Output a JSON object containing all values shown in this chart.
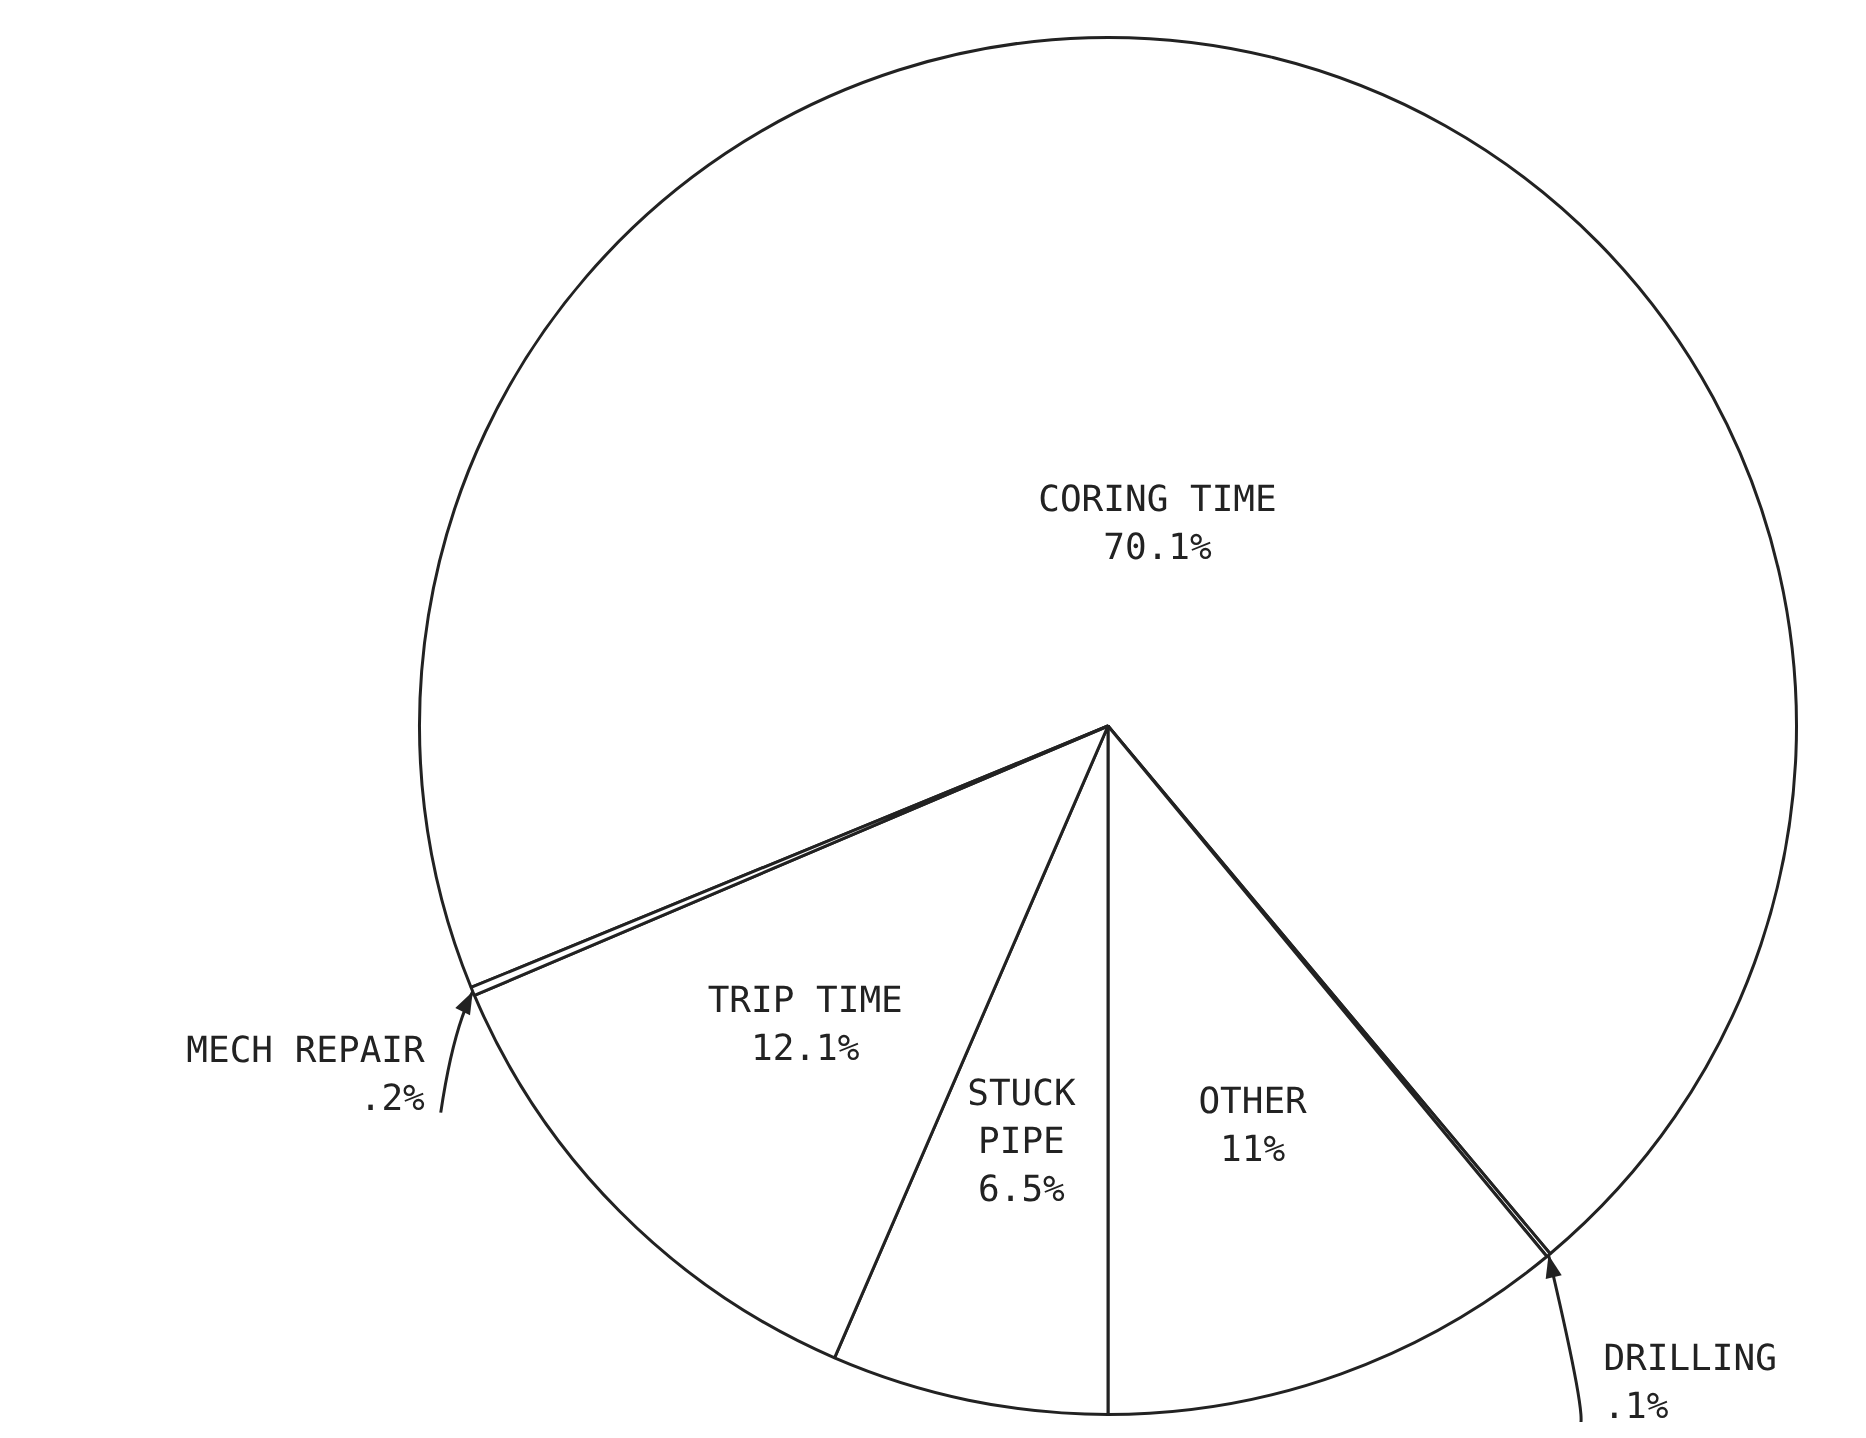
{
  "chart_data": {
    "type": "pie",
    "categories": [
      "CORING TIME",
      "DRILLING",
      "OTHER",
      "STUCK PIPE",
      "TRIP TIME",
      "MECH REPAIR"
    ],
    "values": [
      70.1,
      0.1,
      11,
      6.5,
      12.1,
      0.2
    ],
    "value_labels": [
      "70.1%",
      ".1%",
      "11%",
      "6.5%",
      "12.1%",
      ".2%"
    ],
    "colors": [
      "#ffffff",
      "#ffffff",
      "#ffffff",
      "#ffffff",
      "#ffffff",
      "#ffffff"
    ],
    "legend": false
  }
}
